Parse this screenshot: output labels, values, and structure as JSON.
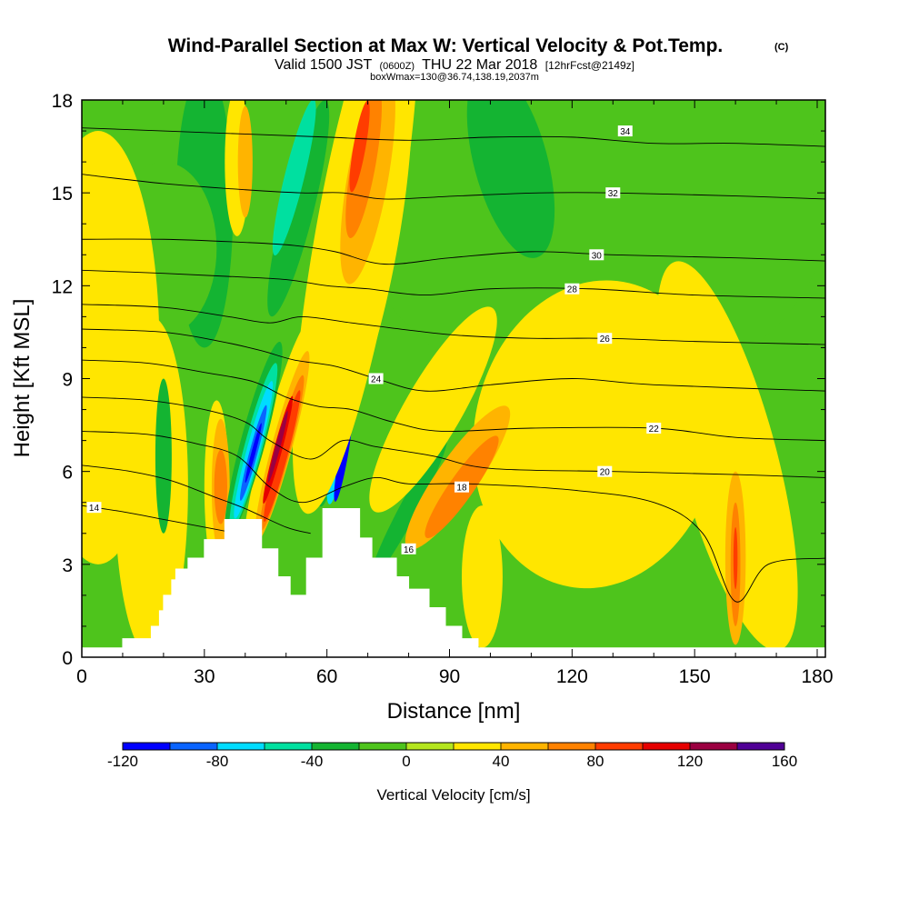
{
  "header": {
    "title": "Wind-Parallel Section at Max W: Vertical Velocity & Pot.Temp.",
    "copyright": "(C)",
    "valid_prefix": "Valid 1500 JST",
    "valid_z": "(0600Z)",
    "valid_date": "THU 22 Mar 2018",
    "forecast": "[12hrFcst@2149z]",
    "box_info": "boxWmax=130@36.74,138.19,2037m"
  },
  "chart_data": {
    "type": "heatmap",
    "xlabel": "Distance [nm]",
    "ylabel": "Height [Kft MSL]",
    "xlim": [
      0,
      182
    ],
    "ylim": [
      0,
      18
    ],
    "x_ticks": [
      0,
      30,
      60,
      90,
      120,
      150,
      180
    ],
    "y_ticks": [
      0,
      3,
      6,
      9,
      12,
      15,
      18
    ],
    "x_tick_labels": [
      "0",
      "30",
      "60",
      "90",
      "120",
      "150",
      "180"
    ],
    "y_tick_labels": [
      "0",
      "3",
      "6",
      "9",
      "12",
      "15",
      "18"
    ],
    "colorbar": {
      "label": "Vertical Velocity [cm/s]",
      "min": -120,
      "max": 160,
      "step": 20,
      "tick_values": [
        -120,
        -80,
        -40,
        0,
        40,
        80,
        120,
        160
      ],
      "tick_labels": [
        "-120",
        "-80",
        "-40",
        "0",
        "40",
        "80",
        "120",
        "160"
      ],
      "colors": [
        "#0000ff",
        "#0a64ff",
        "#00dcff",
        "#00e0a0",
        "#14b432",
        "#4ec41c",
        "#b4e61e",
        "#ffe600",
        "#ffb400",
        "#ff8200",
        "#ff3c00",
        "#e60000",
        "#9b0041",
        "#500096"
      ]
    },
    "colors": {
      "background": "#4ec41c",
      "terrain": "#ffffff",
      "contour": "#000000"
    },
    "terrain": [
      [
        0,
        0.3
      ],
      [
        10,
        0.3
      ],
      [
        10,
        0.6
      ],
      [
        17,
        0.6
      ],
      [
        17,
        1.0
      ],
      [
        19,
        1.0
      ],
      [
        19,
        1.5
      ],
      [
        20,
        1.5
      ],
      [
        20,
        2.0
      ],
      [
        22,
        2.0
      ],
      [
        22,
        2.5
      ],
      [
        23,
        2.5
      ],
      [
        23,
        2.85
      ],
      [
        26,
        2.85
      ],
      [
        26,
        3.2
      ],
      [
        30,
        3.2
      ],
      [
        30,
        3.8
      ],
      [
        35,
        3.8
      ],
      [
        35,
        4.45
      ],
      [
        44,
        4.45
      ],
      [
        44,
        3.5
      ],
      [
        48,
        3.5
      ],
      [
        48,
        2.6
      ],
      [
        51,
        2.6
      ],
      [
        51,
        2.0
      ],
      [
        55,
        2.0
      ],
      [
        55,
        3.2
      ],
      [
        59,
        3.2
      ],
      [
        59,
        4.8
      ],
      [
        68,
        4.8
      ],
      [
        68,
        3.85
      ],
      [
        71,
        3.85
      ],
      [
        71,
        3.2
      ],
      [
        77,
        3.2
      ],
      [
        77,
        2.6
      ],
      [
        80,
        2.6
      ],
      [
        80,
        2.2
      ],
      [
        85,
        2.2
      ],
      [
        85,
        1.6
      ],
      [
        89,
        1.6
      ],
      [
        89,
        1.0
      ],
      [
        93,
        1.0
      ],
      [
        93,
        0.6
      ],
      [
        97,
        0.6
      ],
      [
        97,
        0.3
      ],
      [
        182,
        0.3
      ]
    ],
    "w_features": [
      {
        "x": 30,
        "y": 14.5,
        "rx": 7,
        "ry": 4.5,
        "value": -40,
        "rot": 0
      },
      {
        "x": 20,
        "y": 13.2,
        "rx": 13,
        "ry": 2.8,
        "value": -20,
        "rot": 0
      },
      {
        "x": 125,
        "y": 14.6,
        "rx": 58,
        "ry": 6.2,
        "value": -20,
        "rot": 0
      },
      {
        "x": 105,
        "y": 16.0,
        "rx": 9,
        "ry": 3.2,
        "value": -40,
        "rot": -15
      },
      {
        "x": 4,
        "y": 10.0,
        "rx": 15,
        "ry": 7.0,
        "value": 20,
        "rot": 0
      },
      {
        "x": 17,
        "y": 5.5,
        "rx": 9,
        "ry": 5.5,
        "value": 20,
        "rot": 0
      },
      {
        "x": 126,
        "y": 7.2,
        "rx": 30,
        "ry": 5.0,
        "value": 20,
        "rot": 10
      },
      {
        "x": 158,
        "y": 6.5,
        "rx": 12,
        "ry": 6.5,
        "value": 20,
        "rot": -15
      },
      {
        "x": 38,
        "y": 16.0,
        "rx": 3,
        "ry": 2.4,
        "value": 20,
        "rot": 0
      },
      {
        "x": 40,
        "y": 16.0,
        "rx": 1.8,
        "ry": 1.8,
        "value": 40,
        "rot": 0
      },
      {
        "x": 20,
        "y": 6.5,
        "rx": 2,
        "ry": 2.5,
        "value": -40,
        "rot": 0
      },
      {
        "x": 98,
        "y": 2.6,
        "rx": 5,
        "ry": 2.3,
        "value": 20,
        "rot": 0
      },
      {
        "x": 52,
        "y": 12.5,
        "rx": 3.5,
        "ry": 6.0,
        "value": -20,
        "rot": 14
      },
      {
        "x": 53,
        "y": 14.5,
        "rx": 3.8,
        "ry": 3.6,
        "value": -40,
        "rot": 14
      },
      {
        "x": 52,
        "y": 15.5,
        "rx": 2.4,
        "ry": 2.6,
        "value": -60,
        "rot": 14
      },
      {
        "x": 64,
        "y": 9.0,
        "rx": 3.2,
        "ry": 4.2,
        "value": -40,
        "rot": 10
      },
      {
        "x": 64,
        "y": 7.5,
        "rx": 2.2,
        "ry": 2.6,
        "value": -80,
        "rot": 10
      },
      {
        "x": 64,
        "y": 6.5,
        "rx": 1.1,
        "ry": 1.5,
        "value": -120,
        "rot": 10
      },
      {
        "x": 79,
        "y": 5.0,
        "rx": 4,
        "ry": 4.2,
        "value": -20,
        "rot": 28
      },
      {
        "x": 80,
        "y": 4.8,
        "rx": 2.2,
        "ry": 2.6,
        "value": -40,
        "rot": 28
      },
      {
        "x": 33,
        "y": 5.5,
        "rx": 3,
        "ry": 2.8,
        "value": 20,
        "rot": 0
      },
      {
        "x": 34,
        "y": 5.5,
        "rx": 2.2,
        "ry": 2.2,
        "value": 40,
        "rot": 0
      },
      {
        "x": 34,
        "y": 5.5,
        "rx": 1.6,
        "ry": 1.2,
        "value": 60,
        "rot": 0
      },
      {
        "x": 67,
        "y": 13.5,
        "rx": 10,
        "ry": 9.0,
        "value": 20,
        "rot": 10
      },
      {
        "x": 70,
        "y": 13.5,
        "rx": 7.5,
        "ry": 6.0,
        "value": 20,
        "rot": 10
      },
      {
        "x": 70,
        "y": 15.5,
        "rx": 5,
        "ry": 3.5,
        "value": 40,
        "rot": 10
      },
      {
        "x": 69,
        "y": 16.0,
        "rx": 3,
        "ry": 2.5,
        "value": 60,
        "rot": 10
      },
      {
        "x": 68,
        "y": 16.5,
        "rx": 1.5,
        "ry": 1.5,
        "value": 80,
        "rot": 10
      },
      {
        "x": 86,
        "y": 8.0,
        "rx": 7,
        "ry": 3.8,
        "value": 20,
        "rot": 30
      },
      {
        "x": 92,
        "y": 5.8,
        "rx": 5,
        "ry": 2.8,
        "value": 40,
        "rot": 35
      },
      {
        "x": 93,
        "y": 5.5,
        "rx": 3,
        "ry": 2.0,
        "value": 60,
        "rot": 35
      },
      {
        "x": 160,
        "y": 3.2,
        "rx": 2.5,
        "ry": 2.8,
        "value": 40,
        "rot": 0
      },
      {
        "x": 160,
        "y": 3.0,
        "rx": 1.2,
        "ry": 2.0,
        "value": 60,
        "rot": 0
      },
      {
        "x": 160,
        "y": 3.2,
        "rx": 0.5,
        "ry": 1.0,
        "value": 80,
        "rot": 0
      },
      {
        "x": 48,
        "y": 7.0,
        "rx": 3.5,
        "ry": 4.0,
        "value": 20,
        "rot": 15
      },
      {
        "x": 49,
        "y": 6.8,
        "rx": 2.5,
        "ry": 3.2,
        "value": 40,
        "rot": 15
      },
      {
        "x": 49,
        "y": 6.6,
        "rx": 1.8,
        "ry": 2.6,
        "value": 60,
        "rot": 15
      },
      {
        "x": 49,
        "y": 6.5,
        "rx": 1.3,
        "ry": 2.2,
        "value": 80,
        "rot": 15
      },
      {
        "x": 48,
        "y": 6.7,
        "rx": 1.0,
        "ry": 1.8,
        "value": 100,
        "rot": 15
      },
      {
        "x": 48,
        "y": 6.8,
        "rx": 0.6,
        "ry": 1.2,
        "value": 120,
        "rot": 15
      },
      {
        "x": 42,
        "y": 7.0,
        "rx": 3.0,
        "ry": 3.3,
        "value": -40,
        "rot": 15
      },
      {
        "x": 42,
        "y": 6.8,
        "rx": 2.2,
        "ry": 2.8,
        "value": -60,
        "rot": 15
      },
      {
        "x": 42,
        "y": 6.7,
        "rx": 1.6,
        "ry": 2.3,
        "value": -80,
        "rot": 15
      },
      {
        "x": 42,
        "y": 6.6,
        "rx": 1.0,
        "ry": 1.6,
        "value": -100,
        "rot": 15
      },
      {
        "x": 42,
        "y": 6.6,
        "rx": 0.5,
        "ry": 1.0,
        "value": -120,
        "rot": 15
      }
    ],
    "theta_contours": [
      {
        "value": 14,
        "points": [
          [
            0,
            4.9
          ],
          [
            10,
            4.7
          ],
          [
            20,
            4.45
          ],
          [
            30,
            4.2
          ],
          [
            38,
            4.0
          ]
        ]
      },
      {
        "value": 16,
        "points": [
          [
            0,
            6.2
          ],
          [
            12,
            6.0
          ],
          [
            22,
            5.7
          ],
          [
            32,
            5.2
          ],
          [
            40,
            4.8
          ],
          [
            50,
            4.2
          ],
          [
            56,
            4.0
          ]
        ],
        "label_x": 80,
        "label_y": 3.5
      },
      {
        "value": 18,
        "points": [
          [
            0,
            7.3
          ],
          [
            16,
            7.2
          ],
          [
            28,
            6.9
          ],
          [
            38,
            6.5
          ],
          [
            46,
            5.5
          ],
          [
            54,
            5.0
          ],
          [
            64,
            5.5
          ],
          [
            72,
            5.8
          ],
          [
            80,
            5.6
          ],
          [
            95,
            5.6
          ],
          [
            120,
            5.4
          ],
          [
            140,
            5.0
          ],
          [
            152,
            4.0
          ],
          [
            160,
            1.8
          ],
          [
            168,
            3.0
          ],
          [
            182,
            3.2
          ]
        ],
        "label_x": 93,
        "label_y": 5.5
      },
      {
        "value": 20,
        "points": [
          [
            0,
            8.4
          ],
          [
            16,
            8.3
          ],
          [
            30,
            8.0
          ],
          [
            40,
            7.6
          ],
          [
            46,
            7.0
          ],
          [
            56,
            6.4
          ],
          [
            64,
            7.0
          ],
          [
            72,
            6.8
          ],
          [
            86,
            6.5
          ],
          [
            100,
            6.1
          ],
          [
            130,
            6.0
          ],
          [
            160,
            5.9
          ],
          [
            182,
            5.8
          ]
        ],
        "label_x": 128,
        "label_y": 6.0
      },
      {
        "value": 22,
        "points": [
          [
            0,
            9.6
          ],
          [
            16,
            9.5
          ],
          [
            30,
            9.2
          ],
          [
            42,
            8.9
          ],
          [
            50,
            8.4
          ],
          [
            58,
            8.1
          ],
          [
            66,
            8.0
          ],
          [
            76,
            7.6
          ],
          [
            88,
            7.3
          ],
          [
            110,
            7.4
          ],
          [
            140,
            7.4
          ],
          [
            160,
            7.1
          ],
          [
            182,
            7.0
          ]
        ],
        "label_x": 140,
        "label_y": 7.4
      },
      {
        "value": 24,
        "points": [
          [
            0,
            10.6
          ],
          [
            20,
            10.5
          ],
          [
            34,
            10.2
          ],
          [
            44,
            9.9
          ],
          [
            52,
            9.6
          ],
          [
            62,
            9.4
          ],
          [
            72,
            9.0
          ],
          [
            84,
            8.6
          ],
          [
            100,
            8.8
          ],
          [
            120,
            9.0
          ],
          [
            140,
            8.8
          ],
          [
            182,
            8.6
          ]
        ],
        "label_x": 72,
        "label_y": 9.0
      },
      {
        "value": 26,
        "points": [
          [
            0,
            11.4
          ],
          [
            20,
            11.3
          ],
          [
            36,
            11.0
          ],
          [
            46,
            10.8
          ],
          [
            54,
            11.0
          ],
          [
            66,
            10.8
          ],
          [
            78,
            10.6
          ],
          [
            92,
            10.4
          ],
          [
            110,
            10.3
          ],
          [
            128,
            10.3
          ],
          [
            150,
            10.2
          ],
          [
            182,
            10.1
          ]
        ],
        "label_x": 128,
        "label_y": 10.3
      },
      {
        "value": 28,
        "points": [
          [
            0,
            12.5
          ],
          [
            20,
            12.4
          ],
          [
            36,
            12.3
          ],
          [
            50,
            12.2
          ],
          [
            60,
            12.0
          ],
          [
            70,
            11.9
          ],
          [
            84,
            11.7
          ],
          [
            100,
            11.9
          ],
          [
            124,
            11.9
          ],
          [
            150,
            11.7
          ],
          [
            182,
            11.6
          ]
        ],
        "label_x": 120,
        "label_y": 11.9
      },
      {
        "value": 30,
        "points": [
          [
            0,
            13.5
          ],
          [
            20,
            13.5
          ],
          [
            40,
            13.4
          ],
          [
            52,
            13.3
          ],
          [
            62,
            13.1
          ],
          [
            74,
            12.7
          ],
          [
            90,
            12.9
          ],
          [
            110,
            13.1
          ],
          [
            130,
            13.0
          ],
          [
            160,
            12.9
          ],
          [
            182,
            12.8
          ]
        ],
        "label_x": 126,
        "label_y": 13.0
      },
      {
        "value": 32,
        "points": [
          [
            0,
            15.6
          ],
          [
            20,
            15.3
          ],
          [
            40,
            15.1
          ],
          [
            54,
            15.0
          ],
          [
            64,
            15.0
          ],
          [
            74,
            14.8
          ],
          [
            92,
            14.9
          ],
          [
            112,
            15.0
          ],
          [
            130,
            15.0
          ],
          [
            160,
            14.9
          ],
          [
            182,
            14.8
          ]
        ],
        "label_x": 130,
        "label_y": 15.0
      },
      {
        "value": 34,
        "points": [
          [
            0,
            17.1
          ],
          [
            20,
            17.0
          ],
          [
            40,
            16.9
          ],
          [
            60,
            16.8
          ],
          [
            80,
            16.7
          ],
          [
            100,
            16.8
          ],
          [
            120,
            16.8
          ],
          [
            140,
            16.6
          ],
          [
            160,
            16.6
          ],
          [
            182,
            16.5
          ]
        ],
        "label_x": 133,
        "label_y": 17.0
      }
    ]
  }
}
